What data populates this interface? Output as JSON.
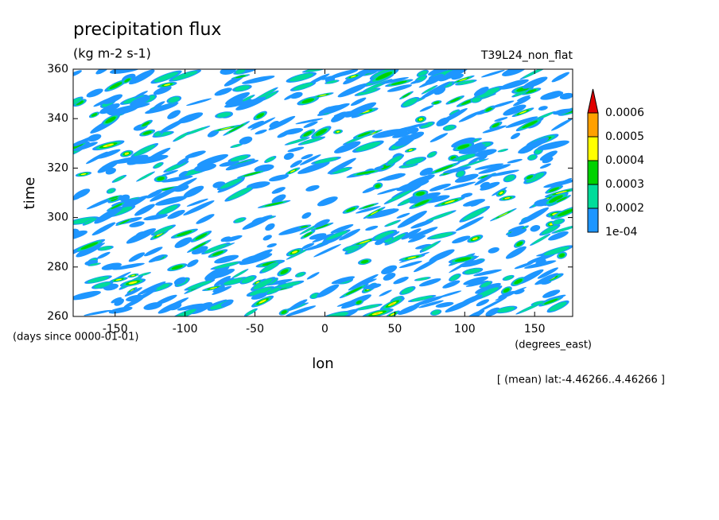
{
  "chart_data": {
    "type": "contour",
    "title": "precipitation flux",
    "subtitle": "(kg m-2 s-1)",
    "run_label": "T39L24_non_flat",
    "xlabel": "lon",
    "ylabel": "time",
    "x_units": "(degrees_east)",
    "y_units": "(days since 0000-01-01)",
    "note": "[ (mean) lat:-4.46266..4.46266 ]",
    "xlim": [
      -180,
      177.1875
    ],
    "ylim": [
      260,
      360
    ],
    "xticks": [
      -150,
      -100,
      -50,
      0,
      50,
      100,
      150
    ],
    "yticks": [
      260,
      280,
      300,
      320,
      340,
      360
    ],
    "levels": [
      {
        "value": 0.0001,
        "label": "1e-04"
      },
      0.0002,
      0.0003,
      0.0004,
      0.0005,
      0.0006
    ],
    "level_colors": [
      "#1e96ff",
      "#00dc9a",
      "#00d200",
      "#ffff00",
      "#ffa000",
      "#e00000"
    ]
  }
}
